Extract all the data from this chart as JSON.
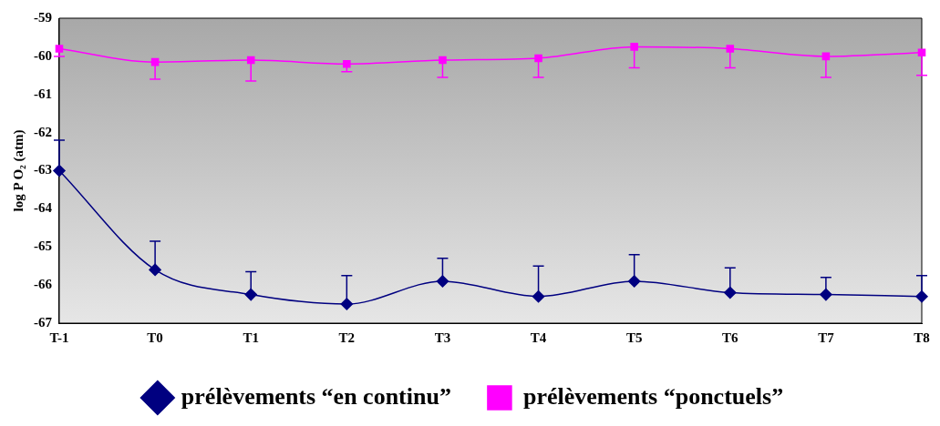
{
  "chart_data": {
    "type": "line",
    "ylabel": "log P O₂ (atm)",
    "categories": [
      "T-1",
      "T0",
      "T1",
      "T2",
      "T3",
      "T4",
      "T5",
      "T6",
      "T7",
      "T8"
    ],
    "ylim": [
      -67,
      -59
    ],
    "yticks": [
      -67,
      -66,
      -65,
      -64,
      -63,
      -62,
      -61,
      -60,
      -59
    ],
    "grid": false,
    "legend": "bottom",
    "series": [
      {
        "name": "prélèvements “en continu”",
        "color": "#000080",
        "marker": "diamond",
        "values": [
          -63.0,
          -65.6,
          -66.25,
          -66.5,
          -65.9,
          -66.3,
          -65.9,
          -66.2,
          -66.25,
          -66.3
        ],
        "errors": [
          [
            -63.0,
            -62.2
          ],
          [
            -65.6,
            -64.85
          ],
          [
            -66.25,
            -65.65
          ],
          [
            -66.5,
            -65.75
          ],
          [
            -65.9,
            -65.3
          ],
          [
            -66.3,
            -65.5
          ],
          [
            -65.9,
            -65.2
          ],
          [
            -66.2,
            -65.55
          ],
          [
            -66.25,
            -65.8
          ],
          [
            -66.3,
            -65.75
          ]
        ]
      },
      {
        "name": "prélèvements “ponctuels”",
        "color": "#ff00ff",
        "marker": "square",
        "values": [
          -59.8,
          -60.15,
          -60.1,
          -60.2,
          -60.1,
          -60.05,
          -59.75,
          -59.8,
          -60.0,
          -59.9
        ],
        "errors": [
          [
            -60.0,
            -59.8
          ],
          [
            -60.6,
            -60.15
          ],
          [
            -60.65,
            -60.1
          ],
          [
            -60.4,
            -60.2
          ],
          [
            -60.55,
            -60.1
          ],
          [
            -60.55,
            -60.05
          ],
          [
            -60.3,
            -59.75
          ],
          [
            -60.3,
            -59.8
          ],
          [
            -60.55,
            -60.0
          ],
          [
            -60.5,
            -59.9
          ]
        ]
      }
    ]
  }
}
